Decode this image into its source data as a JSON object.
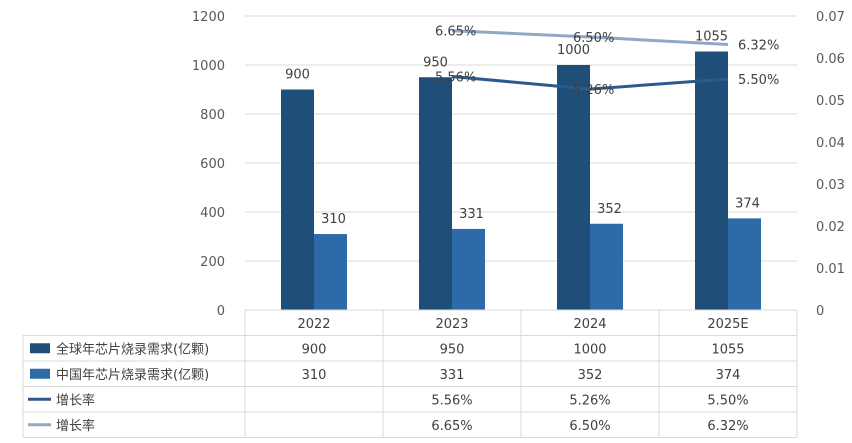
{
  "chart_data": {
    "type": "bar",
    "categories": [
      "2022",
      "2023",
      "2024",
      "2025E"
    ],
    "y_left": {
      "min": 0,
      "max": 1200,
      "ticks": [
        "0",
        "200",
        "400",
        "600",
        "800",
        "1000",
        "1200"
      ]
    },
    "y_right": {
      "min": 0,
      "max": 0.07,
      "ticks": [
        "0",
        "0.01",
        "0.02",
        "0.03",
        "0.04",
        "0.05",
        "0.06",
        "0.07"
      ]
    },
    "series": [
      {
        "name": "全球年芯片烧录需求(亿颗)",
        "kind": "bar",
        "axis": "left",
        "color": "#1F4E79",
        "values": [
          900,
          950,
          1000,
          1055
        ],
        "labels": [
          "900",
          "950",
          "1000",
          "1055"
        ],
        "table": [
          "900",
          "950",
          "1000",
          "1055"
        ]
      },
      {
        "name": "中国年芯片烧录需求(亿颗)",
        "kind": "bar",
        "axis": "left",
        "color": "#2E6AA7",
        "values": [
          310,
          331,
          352,
          374
        ],
        "labels": [
          "310",
          "331",
          "352",
          "374"
        ],
        "table": [
          "310",
          "331",
          "352",
          "374"
        ]
      },
      {
        "name": "增长率",
        "kind": "line",
        "axis": "right",
        "color": "#2D5A8C",
        "values": [
          null,
          0.0556,
          0.0526,
          0.055
        ],
        "labels": [
          "",
          "5.56%",
          "5.26%",
          "5.50%"
        ],
        "table": [
          "",
          "5.56%",
          "5.26%",
          "5.50%"
        ]
      },
      {
        "name": "增长率",
        "kind": "line",
        "axis": "right",
        "color": "#8FA8C8",
        "values": [
          null,
          0.0665,
          0.065,
          0.0632
        ],
        "labels": [
          "",
          "6.65%",
          "6.50%",
          "6.32%"
        ],
        "table": [
          "",
          "6.65%",
          "6.50%",
          "6.32%"
        ]
      }
    ],
    "legend": "data-table-below",
    "grid": true
  }
}
